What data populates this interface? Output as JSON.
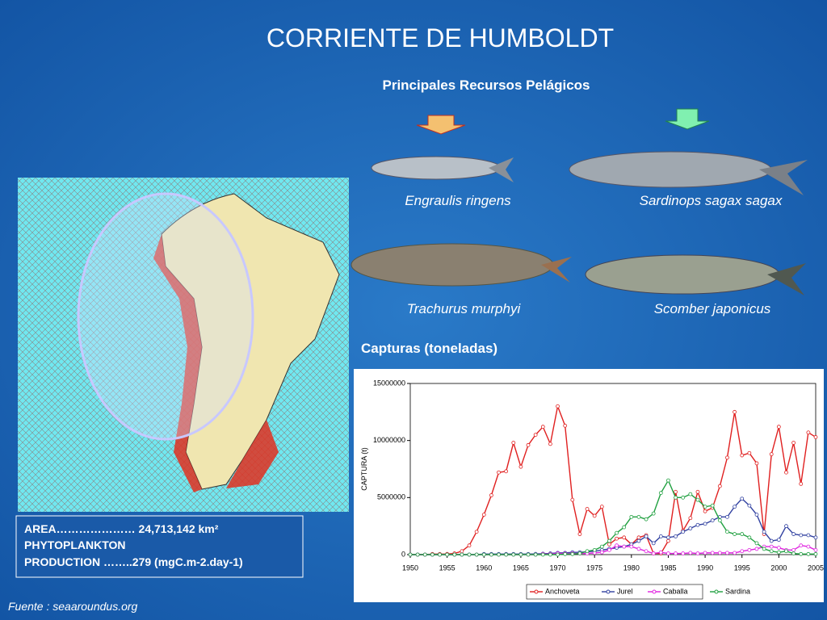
{
  "slide": {
    "title": "CORRIENTE DE HUMBOLDT",
    "subtitle": "Principales Recursos Pelágicos",
    "species": [
      "Engraulis ringens",
      "Sardinops sagax sagax",
      "Trachurus murphyi",
      "Scomber japonicus"
    ],
    "chart_heading": "Capturas (toneladas)",
    "info_box": [
      "AREA………………… 24,713,142 km²",
      "PHYTOPLANKTON",
      "PRODUCTION ……..279 (mgC.m-2.day-1)"
    ],
    "source": "Fuente : seaaroundus.org"
  },
  "chart_data": {
    "type": "line",
    "y_label": "CAPTURA (t)",
    "x": [
      1950,
      1951,
      1952,
      1953,
      1954,
      1955,
      1956,
      1957,
      1958,
      1959,
      1960,
      1961,
      1962,
      1963,
      1964,
      1965,
      1966,
      1967,
      1968,
      1969,
      1970,
      1971,
      1972,
      1973,
      1974,
      1975,
      1976,
      1977,
      1978,
      1979,
      1980,
      1981,
      1982,
      1983,
      1984,
      1985,
      1986,
      1987,
      1988,
      1989,
      1990,
      1991,
      1992,
      1993,
      1994,
      1995,
      1996,
      1997,
      1998,
      1999,
      2000,
      2001,
      2002,
      2003,
      2004,
      2005
    ],
    "xlim": [
      1950,
      2005
    ],
    "xticks": [
      1950,
      1955,
      1960,
      1965,
      1970,
      1975,
      1980,
      1985,
      1990,
      1995,
      2000,
      2005
    ],
    "ylim": [
      0,
      15000000
    ],
    "yticks": [
      0,
      5000000,
      10000000,
      15000000
    ],
    "series": [
      {
        "name": "Anchoveta",
        "color": "#e02020",
        "values": [
          0,
          0,
          0,
          50000,
          50000,
          60000,
          100000,
          300000,
          800000,
          2000000,
          3500000,
          5200000,
          7200000,
          7300000,
          9800000,
          7700000,
          9600000,
          10500000,
          11200000,
          9700000,
          13000000,
          11300000,
          4800000,
          1800000,
          4000000,
          3400000,
          4200000,
          900000,
          1400000,
          1500000,
          900000,
          1500000,
          1700000,
          100000,
          100000,
          1200000,
          5500000,
          2100000,
          3200000,
          5500000,
          3800000,
          4100000,
          6000000,
          8500000,
          12500000,
          8700000,
          8900000,
          8000000,
          1800000,
          8800000,
          11200000,
          7200000,
          9800000,
          6200000,
          10700000,
          10300000
        ]
      },
      {
        "name": "Jurel",
        "color": "#3040a0",
        "values": [
          0,
          0,
          0,
          0,
          0,
          0,
          0,
          0,
          0,
          0,
          50000,
          50000,
          50000,
          50000,
          50000,
          50000,
          50000,
          60000,
          80000,
          100000,
          150000,
          150000,
          200000,
          200000,
          250000,
          300000,
          400000,
          500000,
          600000,
          700000,
          900000,
          1200000,
          1600000,
          1000000,
          1600000,
          1500000,
          1600000,
          2000000,
          2300000,
          2600000,
          2700000,
          3000000,
          3300000,
          3300000,
          4200000,
          4900000,
          4300000,
          3500000,
          2000000,
          1200000,
          1300000,
          2500000,
          1800000,
          1700000,
          1700000,
          1500000
        ]
      },
      {
        "name": "Caballa",
        "color": "#e020e0",
        "values": [
          0,
          0,
          0,
          0,
          0,
          0,
          0,
          0,
          0,
          0,
          0,
          0,
          0,
          0,
          0,
          0,
          0,
          0,
          50000,
          50000,
          100000,
          100000,
          100000,
          100000,
          100000,
          150000,
          200000,
          400000,
          800000,
          700000,
          700000,
          500000,
          300000,
          100000,
          200000,
          100000,
          100000,
          100000,
          150000,
          100000,
          150000,
          150000,
          150000,
          150000,
          150000,
          300000,
          400000,
          500000,
          700000,
          700000,
          600000,
          400000,
          400000,
          800000,
          700000,
          400000
        ]
      },
      {
        "name": "Sardina",
        "color": "#20a040",
        "values": [
          0,
          0,
          0,
          0,
          0,
          0,
          0,
          0,
          0,
          0,
          0,
          0,
          0,
          0,
          0,
          0,
          0,
          0,
          0,
          0,
          0,
          50000,
          50000,
          100000,
          300000,
          400000,
          700000,
          1200000,
          1900000,
          2400000,
          3300000,
          3300000,
          3100000,
          3600000,
          5400000,
          6500000,
          5000000,
          5000000,
          5300000,
          4800000,
          4200000,
          4300000,
          3000000,
          2000000,
          1800000,
          1800000,
          1500000,
          1000000,
          500000,
          300000,
          200000,
          300000,
          100000,
          50000,
          50000,
          50000
        ]
      }
    ]
  }
}
